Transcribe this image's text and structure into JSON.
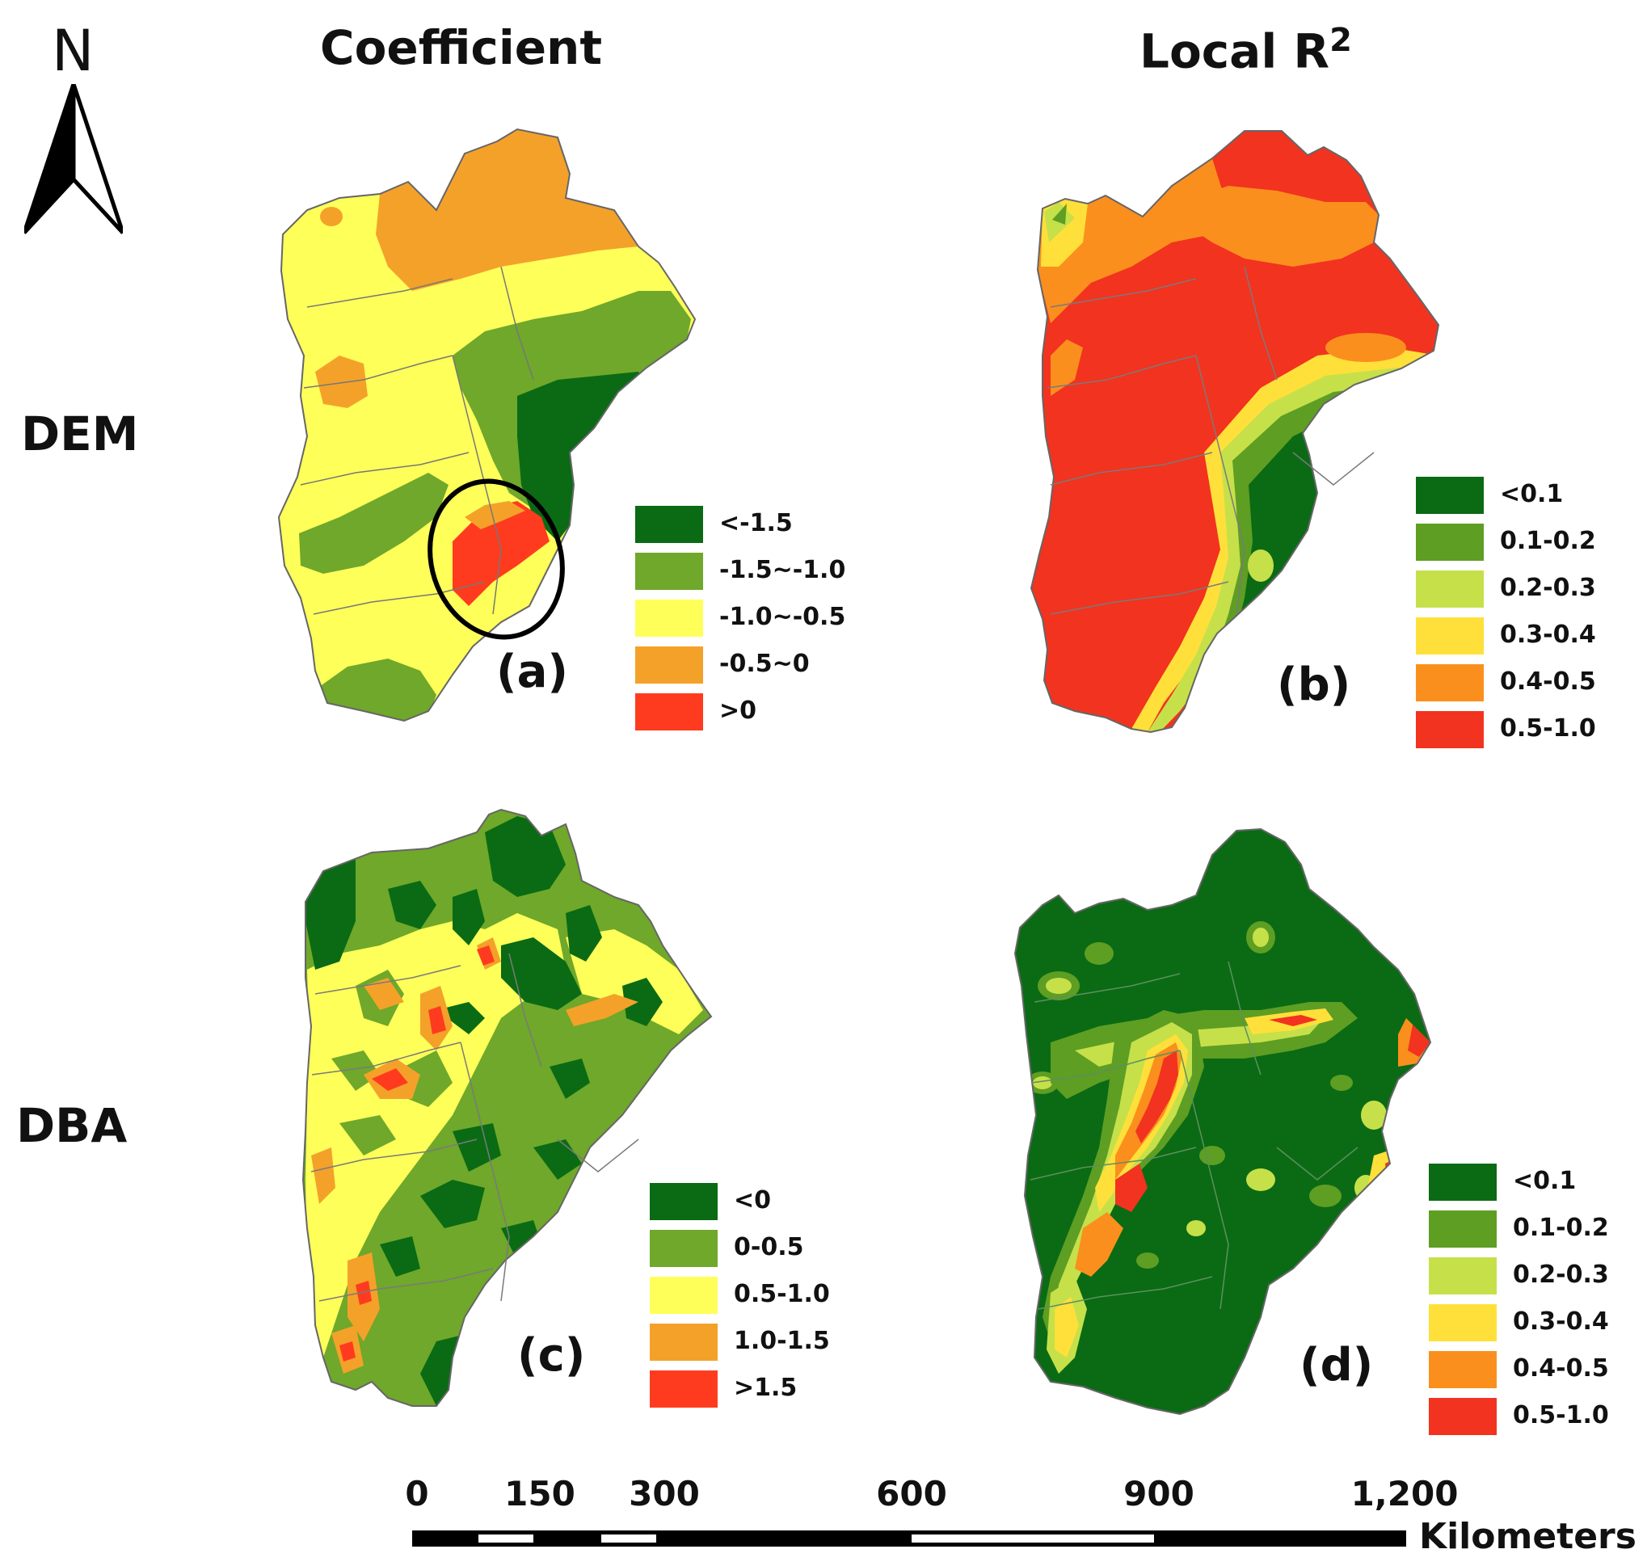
{
  "headers": {
    "coefficient": "Coefficient",
    "local_r2_base": "Local R",
    "local_r2_sup": "2"
  },
  "rows": {
    "dem": "DEM",
    "dba": "DBA"
  },
  "north": "N",
  "panels": {
    "a": {
      "label": "(a)",
      "legend": [
        {
          "label": "<-1.5",
          "color": "#0a6b14"
        },
        {
          "label": "-1.5~-1.0",
          "color": "#6fa82a"
        },
        {
          "label": "-1.0~-0.5",
          "color": "#ffff5a"
        },
        {
          "label": "-0.5~0",
          "color": "#f4a12a"
        },
        {
          "label": ">0",
          "color": "#ff3b1f"
        }
      ]
    },
    "b": {
      "label": "(b)",
      "legend": [
        {
          "label": "<0.1",
          "color": "#0a6b14"
        },
        {
          "label": "0.1-0.2",
          "color": "#5e9e23"
        },
        {
          "label": "0.2-0.3",
          "color": "#c6e04a"
        },
        {
          "label": "0.3-0.4",
          "color": "#ffe03a"
        },
        {
          "label": "0.4-0.5",
          "color": "#fb8f1e"
        },
        {
          "label": "0.5-1.0",
          "color": "#f2331f"
        }
      ]
    },
    "c": {
      "label": "(c)",
      "legend": [
        {
          "label": "<0",
          "color": "#0a6b14"
        },
        {
          "label": "0-0.5",
          "color": "#6fa82a"
        },
        {
          "label": "0.5-1.0",
          "color": "#ffff5a"
        },
        {
          "label": "1.0-1.5",
          "color": "#f4a12a"
        },
        {
          "label": ">1.5",
          "color": "#ff3b1f"
        }
      ]
    },
    "d": {
      "label": "(d)",
      "legend": [
        {
          "label": "<0.1",
          "color": "#0a6b14"
        },
        {
          "label": "0.1-0.2",
          "color": "#5e9e23"
        },
        {
          "label": "0.2-0.3",
          "color": "#c6e04a"
        },
        {
          "label": "0.3-0.4",
          "color": "#ffe03a"
        },
        {
          "label": "0.4-0.5",
          "color": "#fb8f1e"
        },
        {
          "label": "0.5-1.0",
          "color": "#f2331f"
        }
      ]
    }
  },
  "scale_bar": {
    "ticks": [
      "0",
      "150",
      "300",
      "600",
      "900",
      "1,200"
    ],
    "unit": "Kilometers"
  }
}
